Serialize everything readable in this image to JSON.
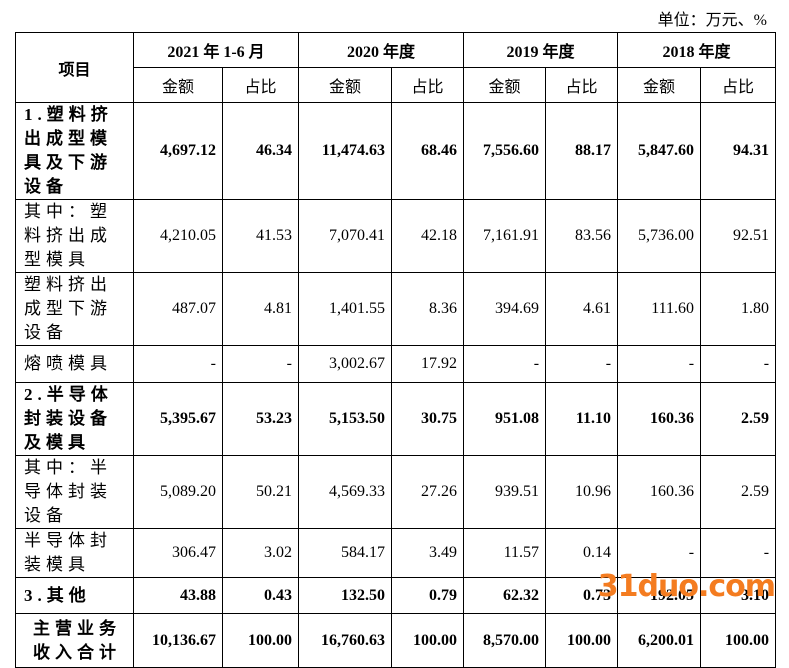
{
  "unit": "单位：万元、%",
  "table": {
    "corner": "项目",
    "periods": [
      "2021 年 1-6 月",
      "2020 年度",
      "2019 年度",
      "2018 年度"
    ],
    "sub_headers": [
      "金额",
      "占比",
      "金额",
      "占比",
      "金额",
      "占比",
      "金额",
      "占比"
    ],
    "rows": [
      {
        "label": "1.塑料挤出成型模具及下游设备",
        "bold": true,
        "values": [
          "4,697.12",
          "46.34",
          "11,474.63",
          "68.46",
          "7,556.60",
          "88.17",
          "5,847.60",
          "94.31"
        ]
      },
      {
        "label": "其中：塑料挤出成型模具",
        "bold": false,
        "values": [
          "4,210.05",
          "41.53",
          "7,070.41",
          "42.18",
          "7,161.91",
          "83.56",
          "5,736.00",
          "92.51"
        ]
      },
      {
        "label": "塑料挤出成型下游设备",
        "bold": false,
        "values": [
          "487.07",
          "4.81",
          "1,401.55",
          "8.36",
          "394.69",
          "4.61",
          "111.60",
          "1.80"
        ]
      },
      {
        "label": "熔喷模具",
        "bold": false,
        "values": [
          "-",
          "-",
          "3,002.67",
          "17.92",
          "-",
          "-",
          "-",
          "-"
        ]
      },
      {
        "label": "2.半导体封装设备及模具",
        "bold": true,
        "values": [
          "5,395.67",
          "53.23",
          "5,153.50",
          "30.75",
          "951.08",
          "11.10",
          "160.36",
          "2.59"
        ]
      },
      {
        "label": "其中：半导体封装设备",
        "bold": false,
        "values": [
          "5,089.20",
          "50.21",
          "4,569.33",
          "27.26",
          "939.51",
          "10.96",
          "160.36",
          "2.59"
        ]
      },
      {
        "label": "半导体封装模具",
        "bold": false,
        "values": [
          "306.47",
          "3.02",
          "584.17",
          "3.49",
          "11.57",
          "0.14",
          "-",
          "-"
        ]
      },
      {
        "label": "3.其他",
        "bold": true,
        "values": [
          "43.88",
          "0.43",
          "132.50",
          "0.79",
          "62.32",
          "0.73",
          "192.05",
          "3.10"
        ]
      },
      {
        "label": "主营业务收入合计",
        "bold": true,
        "values": [
          "10,136.67",
          "100.00",
          "16,760.63",
          "100.00",
          "8,570.00",
          "100.00",
          "6,200.01",
          "100.00"
        ]
      }
    ]
  },
  "watermark": "31duo.com"
}
